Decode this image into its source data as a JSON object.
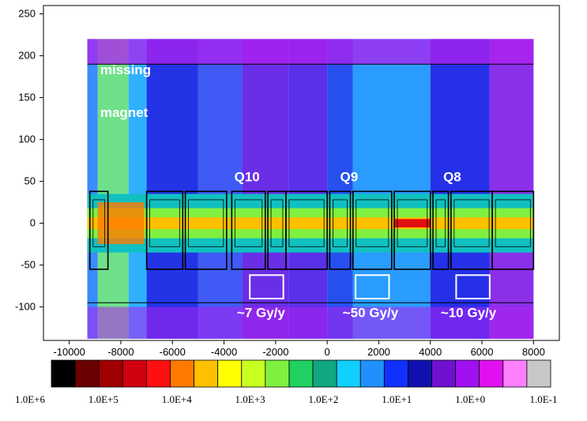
{
  "chart_data": {
    "type": "heatmap",
    "title": "",
    "xlabel": "",
    "ylabel": "",
    "xlim": [
      -11000,
      9000
    ],
    "ylim": [
      -140,
      260
    ],
    "x_ticks": [
      -10000,
      -8000,
      -6000,
      -4000,
      -2000,
      0,
      2000,
      4000,
      6000,
      8000
    ],
    "y_ticks": [
      250,
      200,
      150,
      100,
      50,
      0,
      -50,
      -100
    ],
    "data_extent": {
      "x": [
        -9300,
        8000
      ],
      "y": [
        -138,
        220
      ]
    },
    "grid": false,
    "dose_bands": [
      {
        "x": [
          -9300,
          -8900
        ],
        "color": "#3a8cff"
      },
      {
        "x": [
          -8900,
          -7700
        ],
        "color": "#6fe08a"
      },
      {
        "x": [
          -7700,
          -7000
        ],
        "color": "#2fb0ff"
      },
      {
        "x": [
          -7000,
          -5000
        ],
        "color": "#2334e6"
      },
      {
        "x": [
          -5000,
          -3300
        ],
        "color": "#3f5af5"
      },
      {
        "x": [
          -3300,
          -1500
        ],
        "color": "#6a2ee6"
      },
      {
        "x": [
          -1500,
          0
        ],
        "color": "#5a30e8"
      },
      {
        "x": [
          0,
          1000
        ],
        "color": "#2850f0"
      },
      {
        "x": [
          1000,
          4000
        ],
        "color": "#2a9cff"
      },
      {
        "x": [
          4000,
          6300
        ],
        "color": "#2530e8"
      },
      {
        "x": [
          6300,
          8000
        ],
        "color": "#8a30e8"
      }
    ],
    "magnets": [
      {
        "x": [
          -9200,
          -8500
        ]
      },
      {
        "x": [
          -7000,
          -5600
        ]
      },
      {
        "x": [
          -5500,
          -3900
        ]
      },
      {
        "x": [
          -3700,
          -2400
        ]
      },
      {
        "x": [
          -2300,
          -1600
        ]
      },
      {
        "x": [
          -1600,
          0
        ]
      },
      {
        "x": [
          100,
          900
        ]
      },
      {
        "x": [
          1000,
          2500
        ]
      },
      {
        "x": [
          2600,
          4000
        ]
      },
      {
        "x": [
          4100,
          4700
        ]
      },
      {
        "x": [
          4800,
          6400
        ]
      },
      {
        "x": [
          6400,
          8000
        ]
      }
    ],
    "annotations": [
      {
        "text": "missing",
        "x": -8800,
        "y": 178
      },
      {
        "text": "magnet",
        "x": -8800,
        "y": 127
      },
      {
        "text": "Q10",
        "x": -3600,
        "y": 50
      },
      {
        "text": "Q9",
        "x": 500,
        "y": 50
      },
      {
        "text": "Q8",
        "x": 4500,
        "y": 50
      },
      {
        "text": "~7 Gy/y",
        "x": -3500,
        "y": -112
      },
      {
        "text": "~50 Gy/y",
        "x": 600,
        "y": -112
      },
      {
        "text": "~10 Gy/y",
        "x": 4400,
        "y": -112
      }
    ],
    "dose_boxes": [
      {
        "x": [
          -3000,
          -1700
        ],
        "y": [
          -62,
          -90
        ]
      },
      {
        "x": [
          1100,
          2400
        ],
        "y": [
          -62,
          -90
        ]
      },
      {
        "x": [
          5000,
          6300
        ],
        "y": [
          -62,
          -90
        ]
      }
    ],
    "color_scale": {
      "colors": [
        "#000000",
        "#6b0000",
        "#a00000",
        "#d00010",
        "#ff1010",
        "#ff7a00",
        "#ffc000",
        "#ffff00",
        "#c8ff20",
        "#80f040",
        "#20d060",
        "#10a880",
        "#10d0ff",
        "#2090ff",
        "#1030ff",
        "#1010b0",
        "#7010d0",
        "#a010f0",
        "#e010f0",
        "#ff80ff",
        "#c8c8c8"
      ],
      "labels": [
        "1.0E+6",
        "1.0E+5",
        "1.0E+4",
        "1.0E+3",
        "1.0E+2",
        "1.0E+1",
        "1.0E+0",
        "1.0E-1"
      ]
    }
  }
}
